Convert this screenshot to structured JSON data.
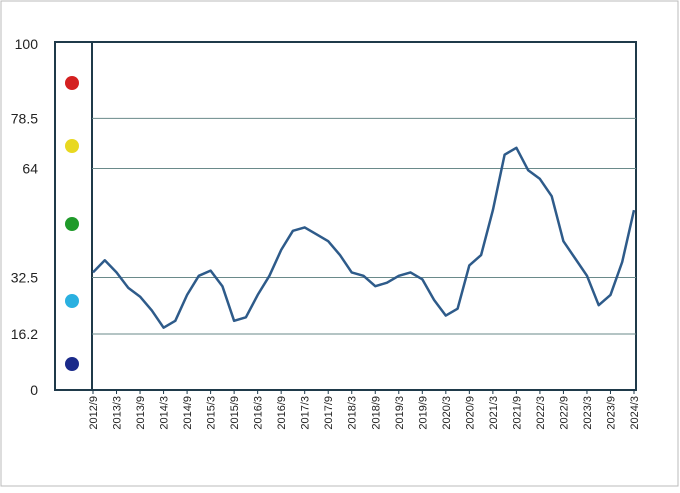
{
  "chart_data": {
    "type": "line",
    "categories": [
      "2012/9",
      null,
      "2013/3",
      null,
      "2013/9",
      null,
      "2014/3",
      null,
      "2014/9",
      null,
      "2015/3",
      null,
      "2015/9",
      null,
      "2016/3",
      null,
      "2016/9",
      null,
      "2017/3",
      null,
      "2017/9",
      null,
      "2018/3",
      null,
      "2018/9",
      null,
      "2019/3",
      null,
      "2019/9",
      null,
      "2020/3",
      null,
      "2020/9",
      null,
      "2021/3",
      null,
      "2021/9",
      null,
      "2022/3",
      null,
      "2022/9",
      null,
      "2023/3",
      null,
      "2023/9",
      null,
      "2024/3"
    ],
    "series": [
      {
        "color": "#2e5b8a",
        "values": [
          34,
          37.5,
          34,
          29.5,
          27,
          23,
          18,
          20,
          27.5,
          33,
          34.5,
          30,
          20,
          21,
          27.5,
          33,
          40.5,
          46,
          47,
          45,
          43,
          39,
          34,
          33,
          30,
          31,
          33,
          34,
          32,
          26,
          21.5,
          23.5,
          36,
          39,
          52,
          68,
          70,
          63.5,
          61,
          56,
          43,
          38,
          33,
          24.5,
          27.5,
          37,
          52
        ]
      }
    ],
    "ylim": [
      0,
      100
    ],
    "yticks": [
      0,
      16.2,
      32.5,
      64.0,
      78.5,
      100
    ],
    "grid": true
  }
}
